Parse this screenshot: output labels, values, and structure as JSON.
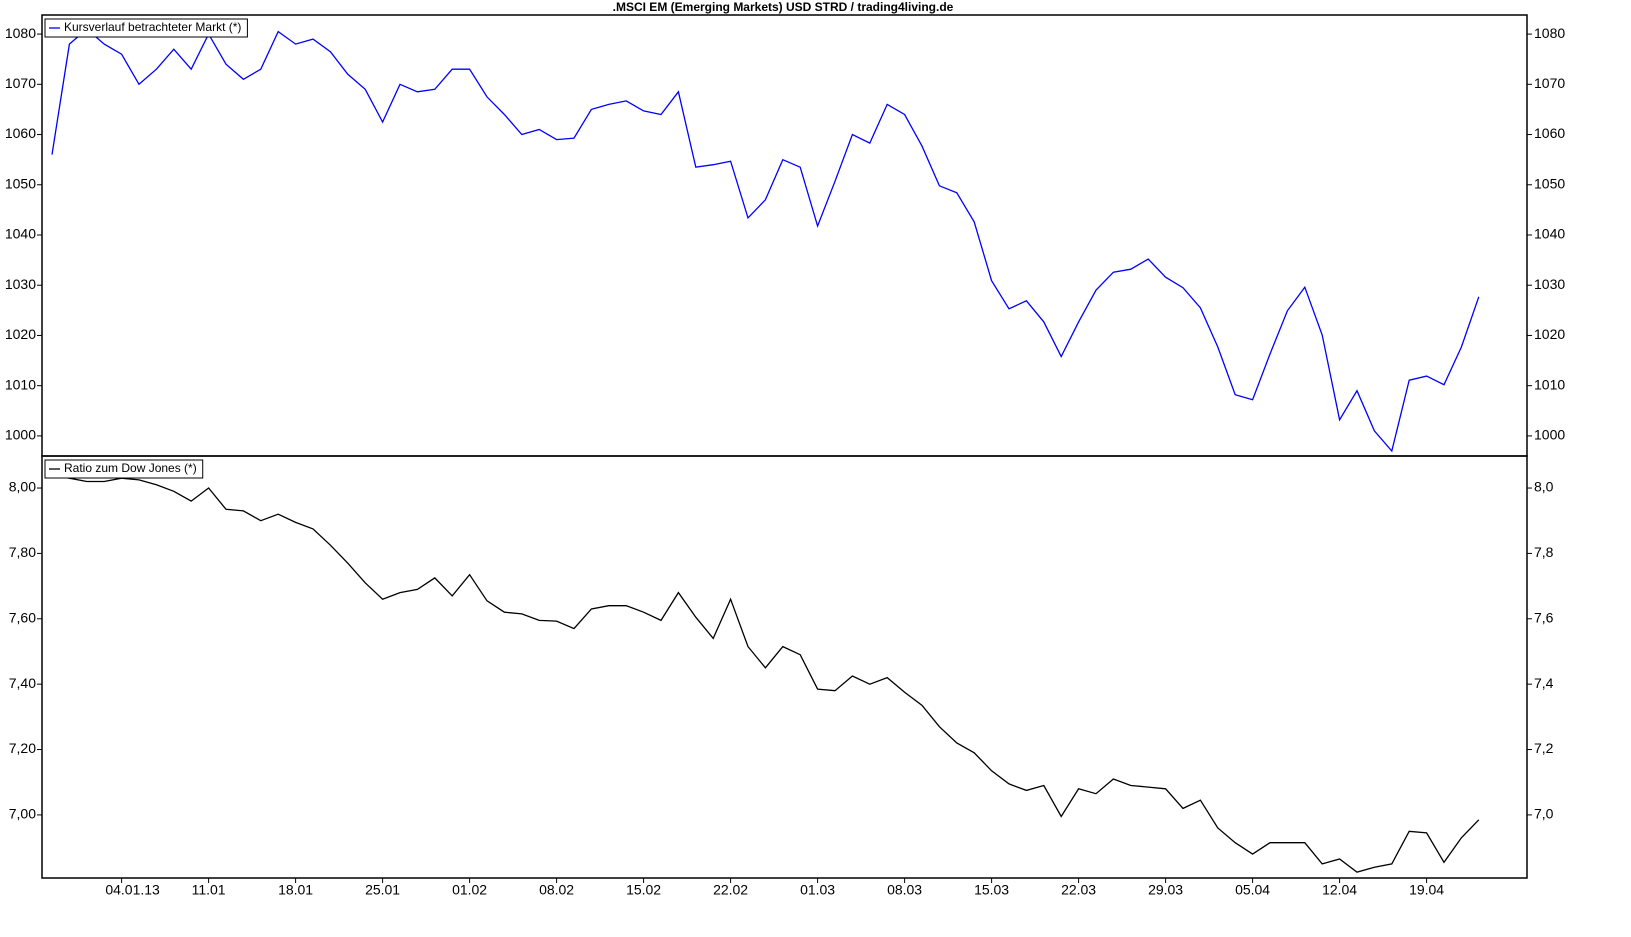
{
  "title": ".MSCI EM (Emerging Markets) USD STRD / trading4living.de",
  "chart_data": [
    {
      "type": "line",
      "series": [
        {
          "name": "Kursverlauf betrachteter Markt (*)",
          "color": "#0000ff",
          "values": [
            1056,
            1078,
            1081,
            1078,
            1076,
            1070,
            1073,
            1077,
            1073,
            1080,
            1074,
            1071,
            1073,
            1080.5,
            1078,
            1079,
            1076.5,
            1072,
            1069,
            1062.5,
            1070,
            1068.5,
            1069,
            1073,
            1073,
            1067.5,
            1064,
            1060,
            1061,
            1059,
            1059.3,
            1065,
            1066,
            1066.7,
            1064.7,
            1064,
            1068.5,
            1053.5,
            1054,
            1054.7,
            1043.4,
            1047,
            1055,
            1053.5,
            1041.8,
            1050.7,
            1060,
            1058.3,
            1066,
            1064,
            1057.7,
            1049.8,
            1048.4,
            1042.6,
            1030.9,
            1025.3,
            1026.9,
            1022.7,
            1015.8,
            1022.7,
            1029,
            1032.6,
            1033.2,
            1035.2,
            1031.6,
            1029.5,
            1025.5,
            1017.7,
            1008.2,
            1007.2,
            1016.3,
            1024.9,
            1029.6,
            1020.1,
            1003.2,
            1009,
            1001,
            997,
            1011.1,
            1011.9,
            1010.2,
            1017.7,
            1027.7
          ]
        }
      ],
      "ylim": [
        996,
        1083.8
      ],
      "yticks": [
        1000,
        1010,
        1020,
        1030,
        1040,
        1050,
        1060,
        1070,
        1080
      ],
      "y2lim": [
        996,
        1083.8
      ],
      "y2ticks": [
        1000,
        1010,
        1020,
        1030,
        1040,
        1050,
        1060,
        1070,
        1080
      ],
      "grid": false,
      "legend": "upper left"
    },
    {
      "type": "line",
      "categories": [
        null,
        null,
        null,
        null,
        "04.01.13",
        null,
        null,
        null,
        null,
        "11.01",
        null,
        null,
        null,
        null,
        "18.01",
        null,
        null,
        null,
        null,
        "25.01",
        null,
        null,
        null,
        null,
        "01.02",
        null,
        null,
        null,
        null,
        "08.02",
        null,
        null,
        null,
        null,
        "15.02",
        null,
        null,
        null,
        null,
        "22.02",
        null,
        null,
        null,
        null,
        "01.03",
        null,
        null,
        null,
        null,
        "08.03",
        null,
        null,
        null,
        null,
        "15.03",
        null,
        null,
        null,
        null,
        "22.03",
        null,
        null,
        null,
        null,
        "29.03",
        null,
        null,
        null,
        null,
        "05.04",
        null,
        null,
        null,
        null,
        "12.04",
        null,
        null,
        null,
        null,
        "19.04",
        null,
        null,
        null
      ],
      "series": [
        {
          "name": "Ratio zum Dow Jones (*)",
          "color": "#000000",
          "values": [
            8.04,
            8.03,
            8.02,
            8.02,
            8.03,
            8.025,
            8.01,
            7.99,
            7.96,
            8.0,
            7.935,
            7.93,
            7.9,
            7.92,
            7.895,
            7.875,
            7.825,
            7.77,
            7.71,
            7.66,
            7.68,
            7.69,
            7.725,
            7.67,
            7.735,
            7.655,
            7.62,
            7.615,
            7.595,
            7.593,
            7.57,
            7.63,
            7.64,
            7.64,
            7.62,
            7.595,
            7.68,
            7.605,
            7.54,
            7.66,
            7.515,
            7.45,
            7.515,
            7.49,
            7.385,
            7.38,
            7.425,
            7.4,
            7.42,
            7.375,
            7.335,
            7.27,
            7.22,
            7.19,
            7.135,
            7.095,
            7.075,
            7.09,
            6.995,
            7.08,
            7.065,
            7.11,
            7.09,
            7.085,
            7.08,
            7.02,
            7.045,
            6.96,
            6.915,
            6.88,
            6.915,
            6.915,
            6.915,
            6.85,
            6.865,
            6.825,
            6.84,
            6.85,
            6.95,
            6.945,
            6.855,
            6.93,
            6.985
          ]
        }
      ],
      "ylim": [
        6.807,
        8.098
      ],
      "yticks": [
        {
          "value": 7.0,
          "label": "7,00"
        },
        {
          "value": 7.2,
          "label": "7,20"
        },
        {
          "value": 7.4,
          "label": "7,40"
        },
        {
          "value": 7.6,
          "label": "7,60"
        },
        {
          "value": 7.8,
          "label": "7,80"
        },
        {
          "value": 8.0,
          "label": "8,00"
        }
      ],
      "y2lim": [
        6.807,
        8.098
      ],
      "y2ticks": [
        {
          "value": 7.0,
          "label": "7,0"
        },
        {
          "value": 7.2,
          "label": "7,2"
        },
        {
          "value": 7.4,
          "label": "7,4"
        },
        {
          "value": 7.6,
          "label": "7,6"
        },
        {
          "value": 7.8,
          "label": "7,8"
        },
        {
          "value": 8.0,
          "label": "8,0"
        }
      ],
      "grid": false,
      "legend": "upper left"
    }
  ]
}
